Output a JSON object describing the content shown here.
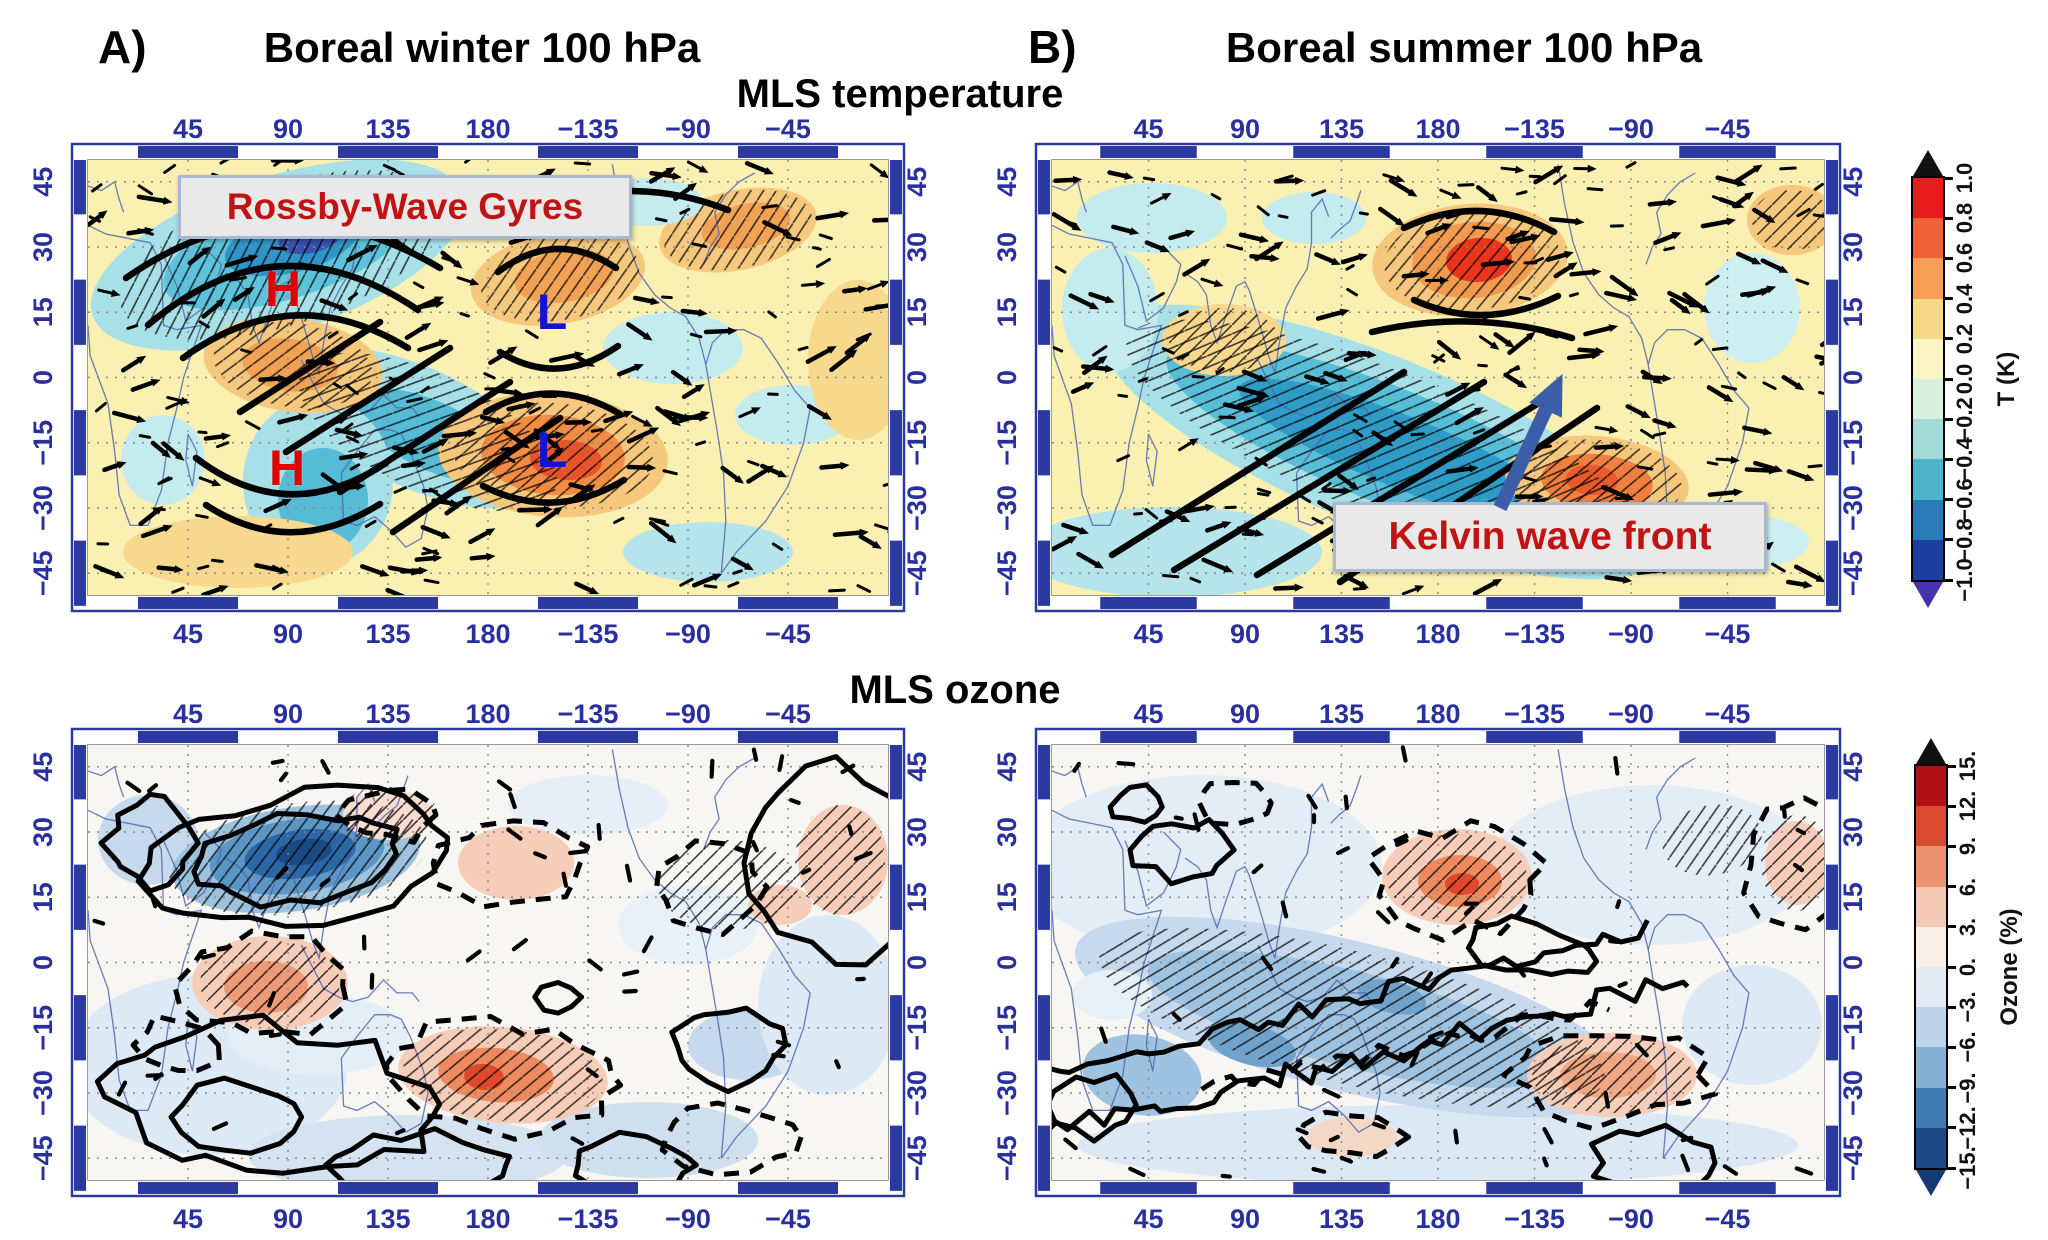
{
  "figure": {
    "label_a": "A)",
    "label_b": "B)",
    "title_a": "Boreal winter 100 hPa",
    "title_b": "Boreal summer 100 hPa",
    "row1_title": "MLS temperature",
    "row2_title": "MLS ozone",
    "pressure_level": "100 hPa"
  },
  "axis": {
    "lon_tick_labels": [
      "45",
      "90",
      "135",
      "180",
      "−135",
      "−90",
      "−45"
    ],
    "lat_tick_labels": [
      "45",
      "30",
      "15",
      "0",
      "−15",
      "−30",
      "−45"
    ],
    "tick_color": "#2a2f9e",
    "frame_color": "#2a3aa0"
  },
  "annotations": {
    "rossby_label": "Rossby-Wave Gyres",
    "kelvin_label": "Kelvin wave front",
    "high_symbol": "H",
    "low_symbol": "L",
    "label_text_color": "#c01414",
    "label_box_bg": "#e9e9e9",
    "label_box_border": "#a9b9d2",
    "high_color": "#e00000",
    "low_color": "#1515d0",
    "arrow_color": "#3c5ea8"
  },
  "colorbars": [
    {
      "id": "temperature",
      "unit": "T (K)",
      "tick_labels": [
        "1.0",
        "0.8",
        "0.6",
        "0.4",
        "0.2",
        "0.0",
        "−0.2",
        "−0.4",
        "−0.6",
        "−0.8",
        "−1.0"
      ],
      "colors_top_to_bottom": [
        "#e81c1c",
        "#f0603a",
        "#f59e55",
        "#f7d988",
        "#fbf5c5",
        "#d9efe0",
        "#a2dbd8",
        "#4fb3c9",
        "#2a7ab8",
        "#1c3f9e"
      ],
      "top_arrow_color": "#111111",
      "bottom_arrow_color": "#4633b0"
    },
    {
      "id": "ozone",
      "unit": "Ozone (%)",
      "tick_labels": [
        "15.",
        "12.",
        "9.",
        "6.",
        "3.",
        "0.",
        "−3.",
        "−6.",
        "−9.",
        "−12.",
        "−15."
      ],
      "colors_top_to_bottom": [
        "#b01116",
        "#d84b31",
        "#ec9372",
        "#f5cab5",
        "#f9efe9",
        "#e3eaf4",
        "#bed3e8",
        "#87b0d5",
        "#3f7ab2",
        "#1b4a85"
      ],
      "top_arrow_color": "#111111",
      "bottom_arrow_color": "#143c72"
    }
  ],
  "chart_data": [
    {
      "id": "A",
      "type": "heatmap",
      "variable": "MLS temperature anomaly",
      "season": "Boreal winter",
      "level": "100 hPa",
      "lon_ticks": [
        45,
        90,
        135,
        180,
        -135,
        -90,
        -45
      ],
      "lat_ticks": [
        45,
        30,
        15,
        0,
        -15,
        -30,
        -45
      ],
      "shading_units": "K",
      "shading_range": [
        -1.0,
        1.0
      ],
      "annotation": "Rossby-Wave Gyres",
      "markers": [
        {
          "symbol": "H",
          "lon": 88,
          "lat": 22
        },
        {
          "symbol": "L",
          "lon": -151,
          "lat": 15
        },
        {
          "symbol": "H",
          "lon": 90,
          "lat": -21
        },
        {
          "symbol": "L",
          "lon": -151,
          "lat": -17
        }
      ],
      "features": [
        {
          "desc": "cold anomaly over Tibetan Plateau / South Asia, hatched",
          "lon": 90,
          "lat": 28,
          "value_K": -1.0
        },
        {
          "desc": "warm anomaly equatorial Indian Ocean / Africa",
          "lon": 60,
          "lat": 0,
          "value_K": 0.5
        },
        {
          "desc": "warm anomaly south-central Pacific with L",
          "lon": -150,
          "lat": -18,
          "value_K": 0.8
        },
        {
          "desc": "warm anomaly North Pacific / North America with L",
          "lon": -160,
          "lat": 20,
          "value_K": 0.5
        },
        {
          "desc": "cold SW-NE band across central Pacific",
          "lon": 160,
          "lat": -5,
          "value_K": -0.5
        },
        {
          "desc": "bold streamlines showing anticyclonic/cyclonic Rossby gyres around H and L centers"
        }
      ]
    },
    {
      "id": "B",
      "type": "heatmap",
      "variable": "MLS temperature anomaly",
      "season": "Boreal summer",
      "level": "100 hPa",
      "lon_ticks": [
        45,
        90,
        135,
        180,
        -135,
        -90,
        -45
      ],
      "lat_ticks": [
        45,
        30,
        15,
        0,
        -15,
        -30,
        -45
      ],
      "shading_units": "K",
      "shading_range": [
        -1.0,
        1.0
      ],
      "annotation": "Kelvin wave front",
      "markers": [],
      "features": [
        {
          "desc": "strong warm anomaly near date line, northern subtropics, hatched",
          "lon": -170,
          "lat": 27,
          "value_K": 1.0
        },
        {
          "desc": "cold SW-NE tilted Kelvin wave front band across tropical Pacific, hatched",
          "lon": 170,
          "lat": -10,
          "value_K": -0.7
        },
        {
          "desc": "warm anomaly southeast Pacific subtropics, hatched",
          "lon": -110,
          "lat": -22,
          "value_K": 0.7
        },
        {
          "desc": "blue arrow pointing NE into the Kelvin wave front"
        }
      ]
    },
    {
      "id": "C",
      "type": "heatmap",
      "variable": "MLS ozone anomaly",
      "season": "Boreal winter",
      "level": "100 hPa",
      "lon_ticks": [
        45,
        90,
        135,
        180,
        -135,
        -90,
        -45
      ],
      "lat_ticks": [
        45,
        30,
        15,
        0,
        -15,
        -30,
        -45
      ],
      "shading_units": "%",
      "shading_range": [
        -15,
        15
      ],
      "contour_note": "thick solid black contours around strong anomalies, dashed contours elsewhere, hatching over significant regions",
      "features": [
        {
          "desc": "strong ozone deficit over Tibetan Plateau with nested solid contours",
          "lon": 90,
          "lat": 30,
          "value_pct": -15
        },
        {
          "desc": "ozone enhancement equatorial Indian Ocean / Africa, dashed contour",
          "lon": 60,
          "lat": -5,
          "value_pct": 6
        },
        {
          "desc": "ozone enhancement south-central Pacific, dashed contour",
          "lon": -155,
          "lat": -15,
          "value_pct": 9
        },
        {
          "desc": "weak enhancement North Pacific near date line",
          "lon": -170,
          "lat": 20,
          "value_pct": 3
        },
        {
          "desc": "weak deficits across southern mid-latitudes with solid contour loops",
          "lon": 100,
          "lat": -40,
          "value_pct": -3
        }
      ]
    },
    {
      "id": "D",
      "type": "heatmap",
      "variable": "MLS ozone anomaly",
      "season": "Boreal summer",
      "level": "100 hPa",
      "lon_ticks": [
        45,
        90,
        135,
        180,
        -135,
        -90,
        -45
      ],
      "lat_ticks": [
        45,
        30,
        15,
        0,
        -15,
        -30,
        -45
      ],
      "shading_units": "%",
      "shading_range": [
        -15,
        15
      ],
      "contour_note": "double thick solid contour outlining SW-NE tilted deficit band; dashed contours around enhancements",
      "features": [
        {
          "desc": "ozone deficit band tilted SW-NE along Kelvin wave front, solid double contour",
          "lon": 150,
          "lat": -15,
          "value_pct": -9
        },
        {
          "desc": "ozone enhancement near date line, northern subtropics, dashed contour + hatching",
          "lon": 180,
          "lat": 20,
          "value_pct": 9
        },
        {
          "desc": "ozone enhancement southeast Pacific, dashed contour",
          "lon": -105,
          "lat": -20,
          "value_pct": 6
        },
        {
          "desc": "light blue weak deficits over most of the domain",
          "lon": 0,
          "lat": 0,
          "value_pct": -3
        }
      ]
    }
  ]
}
